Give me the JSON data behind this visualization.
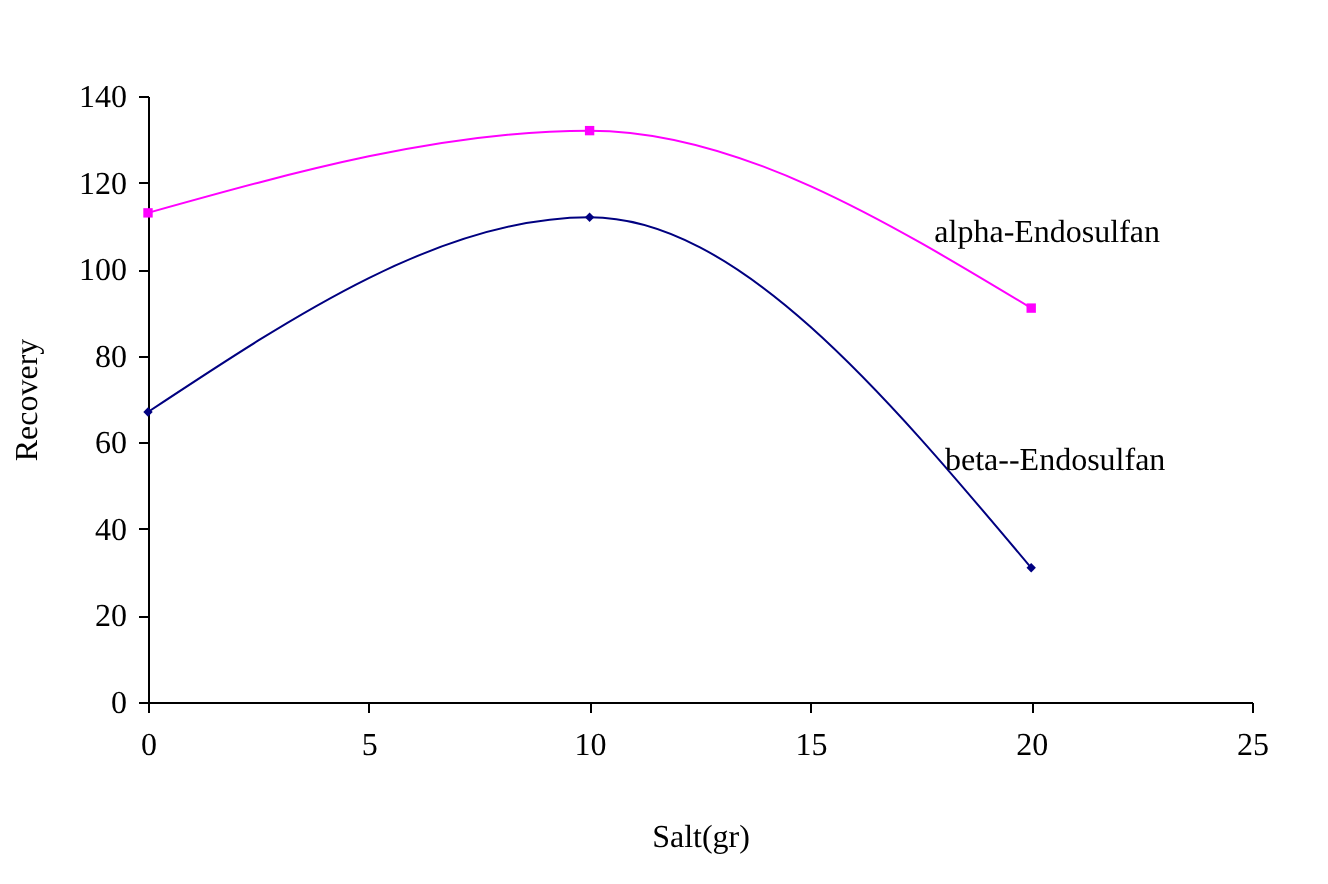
{
  "chart_data": {
    "type": "line",
    "xlabel": "Salt(gr)",
    "ylabel": "Recovery",
    "x": [
      0,
      10,
      20
    ],
    "series": [
      {
        "name": "alpha-Endosulfan",
        "color": "#ff00ff",
        "values": [
          113,
          132,
          91
        ],
        "marker": "square"
      },
      {
        "name": "beta--Endosulfan",
        "color": "#000080",
        "values": [
          67,
          112,
          31
        ],
        "marker": "diamond"
      }
    ],
    "xlim": [
      0,
      25
    ],
    "xticks": [
      0,
      5,
      10,
      15,
      20,
      25
    ],
    "ylim": [
      0,
      140
    ],
    "yticks": [
      0,
      20,
      40,
      60,
      80,
      100,
      120,
      140
    ],
    "grid": false
  }
}
